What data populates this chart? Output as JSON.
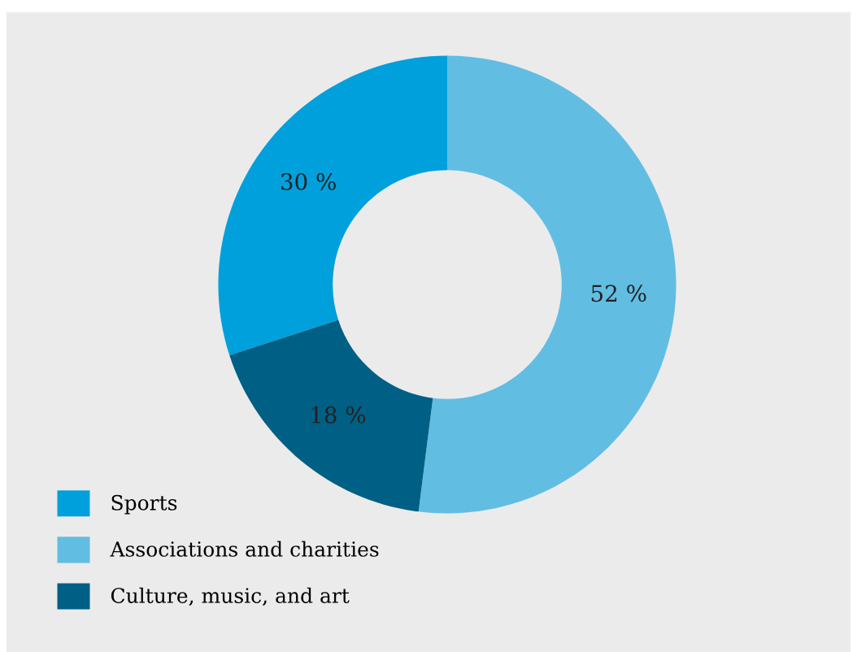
{
  "chart_data": {
    "type": "donut",
    "categories": [
      "Sports",
      "Associations and charities",
      "Culture, music, and art"
    ],
    "values": [
      30,
      52,
      18
    ],
    "colors": [
      "#00a0dc",
      "#62bde3",
      "#005f85"
    ],
    "value_labels": [
      "30 %",
      "52 %",
      "18 %"
    ],
    "legend": "bottom left"
  }
}
